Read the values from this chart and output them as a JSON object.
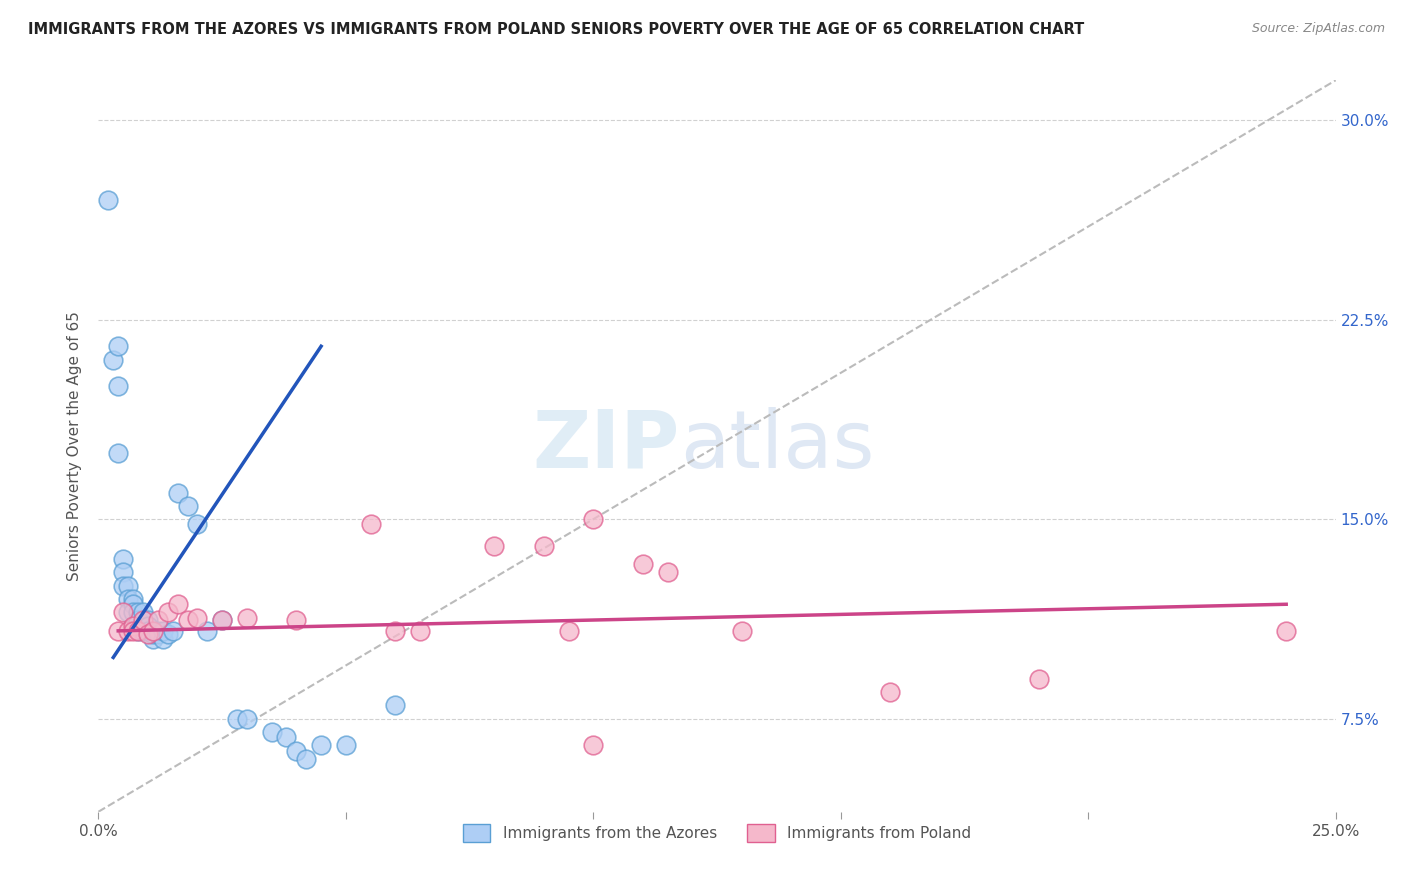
{
  "title": "IMMIGRANTS FROM THE AZORES VS IMMIGRANTS FROM POLAND SENIORS POVERTY OVER THE AGE OF 65 CORRELATION CHART",
  "source": "Source: ZipAtlas.com",
  "ylabel": "Seniors Poverty Over the Age of 65",
  "xlabel": "",
  "xlim": [
    0.0,
    0.25
  ],
  "ylim": [
    0.04,
    0.315
  ],
  "xticks": [
    0.0,
    0.05,
    0.1,
    0.15,
    0.2,
    0.25
  ],
  "xticklabels": [
    "0.0%",
    "",
    "",
    "",
    "",
    "25.0%"
  ],
  "yticks_right": [
    0.075,
    0.15,
    0.225,
    0.3
  ],
  "ytick_labels_right": [
    "7.5%",
    "15.0%",
    "22.5%",
    "30.0%"
  ],
  "azores_color": "#aecef5",
  "azores_color_edge": "#5a9fd4",
  "poland_color": "#f5b8cb",
  "poland_color_edge": "#e06090",
  "trendline_azores_color": "#2255bb",
  "trendline_poland_color": "#cc4488",
  "ref_line_color": "#bbbbbb",
  "background_color": "#ffffff",
  "grid_color": "#cccccc",
  "watermark_zip": "ZIP",
  "watermark_atlas": "atlas",
  "azores_x": [
    0.002,
    0.003,
    0.004,
    0.004,
    0.004,
    0.005,
    0.005,
    0.005,
    0.006,
    0.006,
    0.006,
    0.007,
    0.007,
    0.007,
    0.007,
    0.008,
    0.008,
    0.008,
    0.009,
    0.009,
    0.01,
    0.01,
    0.01,
    0.011,
    0.011,
    0.012,
    0.012,
    0.013,
    0.013,
    0.014,
    0.015,
    0.016,
    0.018,
    0.02,
    0.022,
    0.025,
    0.028,
    0.03,
    0.035,
    0.038,
    0.04,
    0.042,
    0.045,
    0.05,
    0.06
  ],
  "azores_y": [
    0.27,
    0.21,
    0.215,
    0.2,
    0.175,
    0.135,
    0.13,
    0.125,
    0.125,
    0.12,
    0.115,
    0.12,
    0.118,
    0.115,
    0.11,
    0.115,
    0.112,
    0.108,
    0.115,
    0.108,
    0.112,
    0.11,
    0.108,
    0.105,
    0.107,
    0.108,
    0.107,
    0.105,
    0.108,
    0.107,
    0.108,
    0.16,
    0.155,
    0.148,
    0.108,
    0.112,
    0.075,
    0.075,
    0.07,
    0.068,
    0.063,
    0.06,
    0.065,
    0.065,
    0.08
  ],
  "poland_x": [
    0.004,
    0.005,
    0.006,
    0.007,
    0.007,
    0.008,
    0.009,
    0.01,
    0.011,
    0.012,
    0.014,
    0.016,
    0.018,
    0.02,
    0.025,
    0.03,
    0.04,
    0.055,
    0.06,
    0.065,
    0.08,
    0.09,
    0.095,
    0.1,
    0.1,
    0.11,
    0.115,
    0.13,
    0.16,
    0.19,
    0.24
  ],
  "poland_y": [
    0.108,
    0.115,
    0.108,
    0.11,
    0.108,
    0.108,
    0.112,
    0.107,
    0.108,
    0.112,
    0.115,
    0.118,
    0.112,
    0.113,
    0.112,
    0.113,
    0.112,
    0.148,
    0.108,
    0.108,
    0.14,
    0.14,
    0.108,
    0.15,
    0.065,
    0.133,
    0.13,
    0.108,
    0.085,
    0.09,
    0.108
  ],
  "azores_trendline_x": [
    0.003,
    0.045
  ],
  "azores_trendline_y_start": 0.098,
  "azores_trendline_y_end": 0.215,
  "poland_trendline_x": [
    0.004,
    0.24
  ],
  "poland_trendline_y_start": 0.108,
  "poland_trendline_y_end": 0.118
}
